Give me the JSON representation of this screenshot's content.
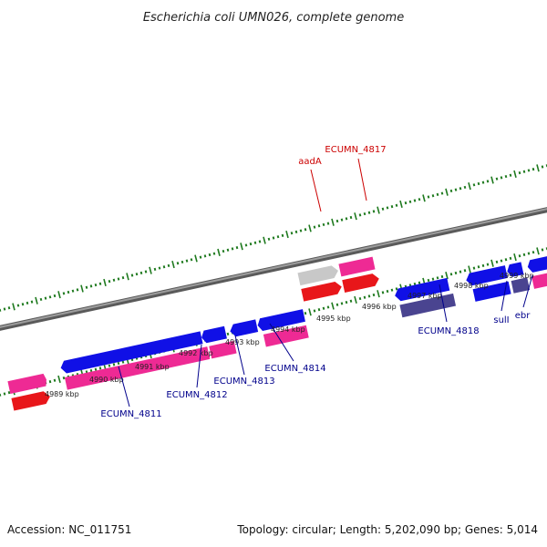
{
  "title": "Escherichia coli UMN026, complete genome",
  "footer": {
    "accession": "Accession: NC_011751",
    "topology": "Topology: circular; Length: 5,202,090 bp; Genes: 5,014"
  },
  "colors": {
    "background": "#ffffff",
    "backbone": "#8a8a8a",
    "tick": "#1f7a1f",
    "cds_forward": "#1010e6",
    "cds_reverse": "#ee2a94",
    "rna_forward": "#e8161a",
    "pseudo": "#c8c8c8",
    "other": "#4a4490",
    "label_red": "#cc0000",
    "label_blue": "#00008b"
  },
  "scale_labels": [
    "4989 kbp",
    "4990 kbp",
    "4991 kbp",
    "4992 kbp",
    "4993 kbp",
    "4994 kbp",
    "4995 kbp",
    "4996 kbp",
    "4997 kbp",
    "4998 kbp",
    "4999 kbp"
  ],
  "gene_labels": [
    {
      "text": "aadA",
      "color": "red"
    },
    {
      "text": "ECUMN_4817",
      "color": "red"
    },
    {
      "text": "ECUMN_4818",
      "color": "blue"
    },
    {
      "text": "sulI",
      "color": "blue"
    },
    {
      "text": "ebr",
      "color": "blue"
    },
    {
      "text": "ECUMN_4811",
      "color": "blue"
    },
    {
      "text": "ECUMN_4812",
      "color": "blue"
    },
    {
      "text": "ECUMN_4813",
      "color": "blue"
    },
    {
      "text": "ECUMN_4814",
      "color": "blue"
    }
  ]
}
